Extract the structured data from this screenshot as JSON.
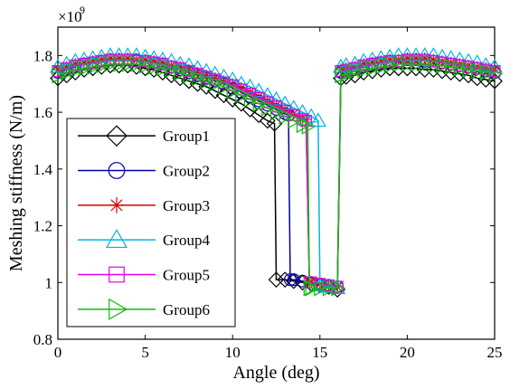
{
  "chart_data": {
    "type": "line",
    "title": "",
    "xlabel": "Angle (deg)",
    "ylabel": "Meshing stiffness (N/m)",
    "xlim": [
      0,
      25
    ],
    "ylim": [
      0.8,
      1.9
    ],
    "x_ticks": [
      "0",
      "5",
      "10",
      "15",
      "20",
      "25"
    ],
    "y_ticks": [
      "0.8",
      "1",
      "1.2",
      "1.4",
      "1.6",
      "1.8"
    ],
    "y_exponent_base": "×10",
    "y_exponent_power": "9",
    "legend_position": "lower-left",
    "grid": false,
    "series": [
      {
        "name": "Group1",
        "color": "#000000",
        "marker": "diamond",
        "x": [
          0,
          0.5,
          1,
          1.5,
          2,
          2.5,
          3,
          3.5,
          4,
          4.5,
          5,
          5.5,
          6,
          6.5,
          7,
          7.5,
          8,
          8.5,
          9,
          9.5,
          10,
          10.5,
          11,
          11.5,
          12,
          12.4,
          12.5,
          13,
          13.5,
          14,
          14.5,
          15,
          15.5,
          16,
          16.2,
          16.5,
          17,
          17.5,
          18,
          18.5,
          19,
          19.5,
          20,
          20.5,
          21,
          21.5,
          22,
          22.5,
          23,
          23.5,
          24,
          24.5,
          25
        ],
        "y": [
          1.72,
          1.73,
          1.74,
          1.75,
          1.755,
          1.76,
          1.765,
          1.765,
          1.765,
          1.76,
          1.755,
          1.75,
          1.74,
          1.73,
          1.72,
          1.71,
          1.7,
          1.69,
          1.675,
          1.66,
          1.645,
          1.63,
          1.61,
          1.59,
          1.57,
          1.56,
          1.01,
          1.01,
          1.005,
          1.0,
          0.995,
          0.99,
          0.985,
          0.975,
          1.72,
          1.725,
          1.73,
          1.74,
          1.745,
          1.75,
          1.755,
          1.755,
          1.755,
          1.755,
          1.75,
          1.75,
          1.745,
          1.74,
          1.735,
          1.73,
          1.72,
          1.715,
          1.71
        ]
      },
      {
        "name": "Group2",
        "color": "#0000aa",
        "marker": "circle",
        "x": [
          0,
          0.5,
          1,
          1.5,
          2,
          2.5,
          3,
          3.5,
          4,
          4.5,
          5,
          5.5,
          6,
          6.5,
          7,
          7.5,
          8,
          8.5,
          9,
          9.5,
          10,
          10.5,
          11,
          11.5,
          12,
          12.5,
          13,
          13.2,
          13.3,
          13.5,
          14,
          14.5,
          15,
          15.5,
          16,
          16.2,
          16.5,
          17,
          17.5,
          18,
          18.5,
          19,
          19.5,
          20,
          20.5,
          21,
          21.5,
          22,
          22.5,
          23,
          23.5,
          24,
          24.5,
          25
        ],
        "y": [
          1.74,
          1.75,
          1.76,
          1.77,
          1.775,
          1.78,
          1.785,
          1.785,
          1.785,
          1.785,
          1.78,
          1.775,
          1.77,
          1.76,
          1.75,
          1.74,
          1.73,
          1.72,
          1.71,
          1.7,
          1.685,
          1.67,
          1.655,
          1.64,
          1.625,
          1.61,
          1.595,
          1.59,
          1.01,
          1.01,
          1.005,
          1.0,
          0.995,
          0.99,
          0.985,
          1.74,
          1.745,
          1.755,
          1.76,
          1.77,
          1.775,
          1.78,
          1.78,
          1.785,
          1.785,
          1.78,
          1.78,
          1.775,
          1.77,
          1.765,
          1.76,
          1.755,
          1.745,
          1.74
        ]
      },
      {
        "name": "Group3",
        "color": "#dd0000",
        "marker": "asterisk",
        "x": [
          0,
          0.5,
          1,
          1.5,
          2,
          2.5,
          3,
          3.5,
          4,
          4.5,
          5,
          5.5,
          6,
          6.5,
          7,
          7.5,
          8,
          8.5,
          9,
          9.5,
          10,
          10.5,
          11,
          11.5,
          12,
          12.5,
          13,
          13.5,
          14,
          14.2,
          14.4,
          14.5,
          15,
          15.5,
          16,
          16.2,
          16.5,
          17,
          17.5,
          18,
          18.5,
          19,
          19.5,
          20,
          20.5,
          21,
          21.5,
          22,
          22.5,
          23,
          23.5,
          24,
          24.5,
          25
        ],
        "y": [
          1.75,
          1.76,
          1.77,
          1.775,
          1.78,
          1.785,
          1.79,
          1.79,
          1.79,
          1.785,
          1.785,
          1.78,
          1.775,
          1.765,
          1.76,
          1.75,
          1.74,
          1.73,
          1.72,
          1.71,
          1.7,
          1.685,
          1.67,
          1.655,
          1.64,
          1.625,
          1.61,
          1.595,
          1.58,
          1.575,
          1.0,
          1.0,
          0.995,
          0.99,
          0.985,
          1.75,
          1.755,
          1.76,
          1.77,
          1.775,
          1.78,
          1.785,
          1.785,
          1.79,
          1.79,
          1.79,
          1.785,
          1.78,
          1.775,
          1.77,
          1.765,
          1.76,
          1.755,
          1.75
        ]
      },
      {
        "name": "Group4",
        "color": "#00b4e6",
        "marker": "triangle",
        "x": [
          0,
          0.5,
          1,
          1.5,
          2,
          2.5,
          3,
          3.5,
          4,
          4.5,
          5,
          5.5,
          6,
          6.5,
          7,
          7.5,
          8,
          8.5,
          9,
          9.5,
          10,
          10.5,
          11,
          11.5,
          12,
          12.5,
          13,
          13.5,
          14,
          14.5,
          14.9,
          15.0,
          15.5,
          16,
          16.2,
          16.5,
          17,
          17.5,
          18,
          18.5,
          19,
          19.5,
          20,
          20.5,
          21,
          21.5,
          22,
          22.5,
          23,
          23.5,
          24,
          24.5,
          25
        ],
        "y": [
          1.76,
          1.77,
          1.78,
          1.785,
          1.79,
          1.795,
          1.8,
          1.8,
          1.8,
          1.8,
          1.795,
          1.79,
          1.785,
          1.78,
          1.77,
          1.765,
          1.755,
          1.745,
          1.735,
          1.725,
          1.715,
          1.7,
          1.69,
          1.675,
          1.66,
          1.645,
          1.63,
          1.615,
          1.6,
          1.585,
          1.57,
          0.99,
          0.985,
          0.98,
          1.76,
          1.765,
          1.77,
          1.78,
          1.785,
          1.79,
          1.795,
          1.8,
          1.8,
          1.8,
          1.8,
          1.8,
          1.795,
          1.79,
          1.785,
          1.78,
          1.775,
          1.765,
          1.76
        ]
      },
      {
        "name": "Group5",
        "color": "#e600e6",
        "marker": "square",
        "x": [
          0,
          0.5,
          1,
          1.5,
          2,
          2.5,
          3,
          3.5,
          4,
          4.5,
          5,
          5.5,
          6,
          6.5,
          7,
          7.5,
          8,
          8.5,
          9,
          9.5,
          10,
          10.5,
          11,
          11.5,
          12,
          12.5,
          13,
          13.5,
          14,
          14.2,
          14.4,
          14.5,
          15,
          15.5,
          16,
          16.2,
          16.5,
          17,
          17.5,
          18,
          18.5,
          19,
          19.5,
          20,
          20.5,
          21,
          21.5,
          22,
          22.5,
          23,
          23.5,
          24,
          24.5,
          25
        ],
        "y": [
          1.745,
          1.755,
          1.765,
          1.77,
          1.775,
          1.78,
          1.785,
          1.785,
          1.785,
          1.78,
          1.78,
          1.775,
          1.77,
          1.76,
          1.755,
          1.745,
          1.735,
          1.725,
          1.715,
          1.705,
          1.695,
          1.68,
          1.665,
          1.65,
          1.635,
          1.62,
          1.605,
          1.59,
          1.575,
          1.57,
          1.0,
          1.0,
          0.995,
          0.99,
          0.985,
          1.745,
          1.75,
          1.755,
          1.765,
          1.77,
          1.775,
          1.78,
          1.78,
          1.785,
          1.785,
          1.785,
          1.78,
          1.775,
          1.77,
          1.765,
          1.76,
          1.755,
          1.75,
          1.745
        ]
      },
      {
        "name": "Group6",
        "color": "#11bb11",
        "marker": "triangle-right",
        "x": [
          0,
          0.5,
          1,
          1.5,
          2,
          2.5,
          3,
          3.5,
          4,
          4.5,
          5,
          5.5,
          6,
          6.5,
          7,
          7.5,
          8,
          8.5,
          9,
          9.5,
          10,
          10.5,
          11,
          11.5,
          12,
          12.5,
          13,
          13.5,
          14,
          14.3,
          14.4,
          14.5,
          15,
          15.5,
          16,
          16.2,
          16.5,
          17,
          17.5,
          18,
          18.5,
          19,
          19.5,
          20,
          20.5,
          21,
          21.5,
          22,
          22.5,
          23,
          23.5,
          24,
          24.5,
          25
        ],
        "y": [
          1.73,
          1.74,
          1.75,
          1.755,
          1.76,
          1.765,
          1.77,
          1.77,
          1.77,
          1.77,
          1.765,
          1.76,
          1.755,
          1.75,
          1.74,
          1.73,
          1.72,
          1.71,
          1.7,
          1.69,
          1.675,
          1.66,
          1.645,
          1.63,
          1.615,
          1.6,
          1.585,
          1.57,
          1.555,
          1.55,
          0.98,
          0.98,
          0.98,
          0.98,
          0.98,
          1.73,
          1.735,
          1.745,
          1.75,
          1.755,
          1.76,
          1.765,
          1.77,
          1.77,
          1.77,
          1.77,
          1.765,
          1.765,
          1.76,
          1.755,
          1.75,
          1.745,
          1.74,
          1.735
        ]
      }
    ]
  }
}
